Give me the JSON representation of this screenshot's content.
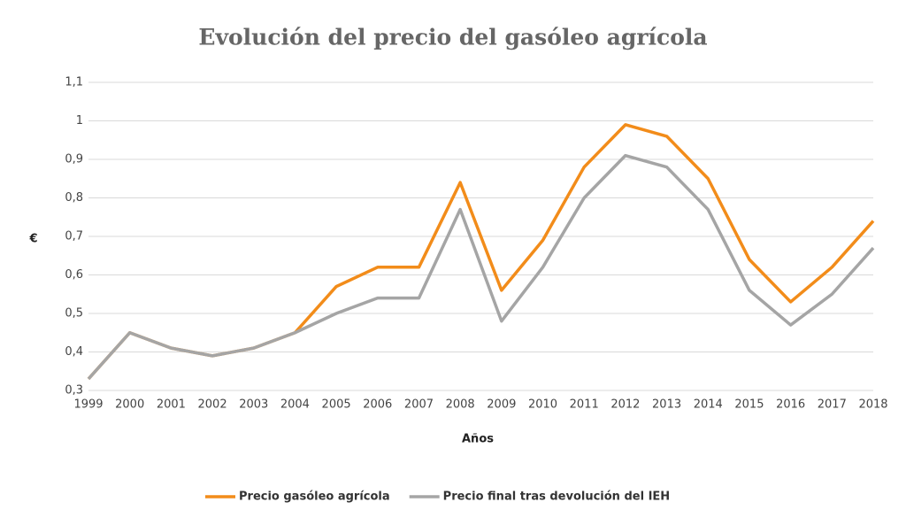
{
  "chart_data": {
    "type": "line",
    "title": "Evolución del precio del gasóleo agrícola",
    "x_label": "Años",
    "y_label": "€",
    "categories": [
      "1999",
      "2000",
      "2001",
      "2002",
      "2003",
      "2004",
      "2005",
      "2006",
      "2007",
      "2008",
      "2009",
      "2010",
      "2011",
      "2012",
      "2013",
      "2014",
      "2015",
      "2016",
      "2017",
      "2018"
    ],
    "series": [
      {
        "name": "Precio gasóleo agrícola",
        "color": "#f28c1a",
        "values": [
          0.33,
          0.45,
          0.41,
          0.39,
          0.41,
          0.45,
          0.57,
          0.62,
          0.62,
          0.84,
          0.56,
          0.69,
          0.88,
          0.99,
          0.96,
          0.85,
          0.64,
          0.53,
          0.62,
          0.74
        ]
      },
      {
        "name": "Precio final tras devolución del IEH",
        "color": "#a5a5a5",
        "values": [
          0.33,
          0.45,
          0.41,
          0.39,
          0.41,
          0.45,
          0.5,
          0.54,
          0.54,
          0.77,
          0.48,
          0.62,
          0.8,
          0.91,
          0.88,
          0.77,
          0.56,
          0.47,
          0.55,
          0.67
        ]
      }
    ],
    "ylim": [
      0.3,
      1.1
    ],
    "yticks": [
      {
        "value": 0.3,
        "label": "0,3"
      },
      {
        "value": 0.4,
        "label": "0,4"
      },
      {
        "value": 0.5,
        "label": "0,5"
      },
      {
        "value": 0.6,
        "label": "0,6"
      },
      {
        "value": 0.7,
        "label": "0,7"
      },
      {
        "value": 0.8,
        "label": "0,8"
      },
      {
        "value": 0.9,
        "label": "0,9"
      },
      1,
      {
        "value": 1.1,
        "label": "1,1"
      }
    ],
    "grid": true,
    "legend": "bottom"
  }
}
